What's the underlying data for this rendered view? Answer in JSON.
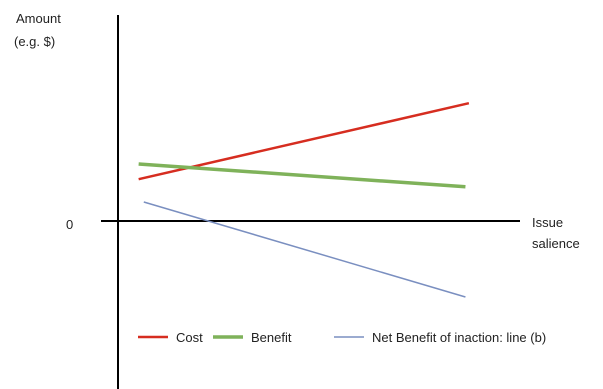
{
  "chart_data": {
    "type": "line",
    "ylabel_lines": [
      "Amount",
      "(e.g. $)"
    ],
    "xlabel_lines": [
      "Issue",
      "salience"
    ],
    "zero_tick": "0",
    "xlim": [
      0,
      10
    ],
    "ylim": [
      -4,
      6.5
    ],
    "series": [
      {
        "name": "Cost",
        "color": "#d62d20",
        "x": [
          0.6,
          10.2
        ],
        "y": [
          1.1,
          3.1
        ]
      },
      {
        "name": "Benefit",
        "color": "#7fb25a",
        "x": [
          0.6,
          10.1
        ],
        "y": [
          1.5,
          0.9
        ]
      },
      {
        "name": "Net Benefit of inaction: line (b)",
        "color": "#7a8fc0",
        "x": [
          0.75,
          10.1
        ],
        "y": [
          0.5,
          -2.0
        ]
      }
    ],
    "legend": {
      "placement": "bottom"
    }
  }
}
